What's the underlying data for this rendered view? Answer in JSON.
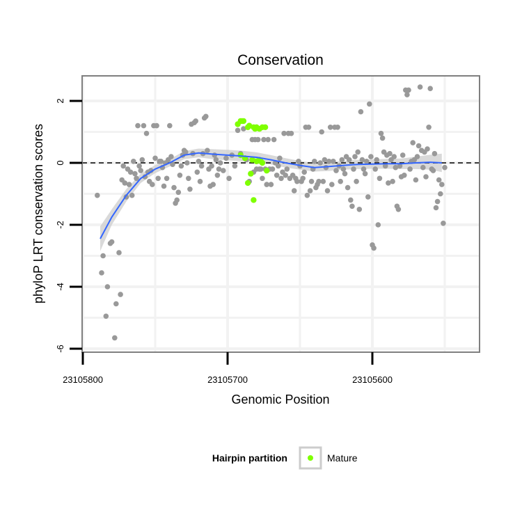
{
  "chart_data": {
    "type": "scatter",
    "title": "Conservation",
    "xlabel": "Genomic Position",
    "ylabel": "phyloP LRT conservation scores",
    "x_reversed": true,
    "xlim": [
      23105800,
      23105525
    ],
    "ylim": [
      -6,
      3
    ],
    "x_ticks": [
      23105800,
      23105700,
      23105600
    ],
    "y_ticks": [
      -6,
      -4,
      -2,
      0,
      2
    ],
    "reference_line": {
      "y": 0,
      "style": "dashed"
    },
    "grid": true,
    "legend": {
      "title": "Hairpin partition",
      "placement": "bottom",
      "entries": [
        "Mature"
      ]
    },
    "colors": {
      "points": "#999999",
      "mature": "#7fff00",
      "smooth": "#3366ff",
      "ribbon": "#cccccc",
      "panel_border": "#7f7f7f"
    },
    "series": [
      {
        "name": "",
        "kind": "points",
        "points": [
          [
            23105790,
            -1.05
          ],
          [
            23105787,
            -3.55
          ],
          [
            23105786,
            -3.0
          ],
          [
            23105784,
            -4.95
          ],
          [
            23105783,
            -4.0
          ],
          [
            23105781,
            -2.6
          ],
          [
            23105780,
            -2.55
          ],
          [
            23105778,
            -5.65
          ],
          [
            23105777,
            -4.55
          ],
          [
            23105775,
            -2.9
          ],
          [
            23105774,
            -4.25
          ],
          [
            23105773,
            -0.55
          ],
          [
            23105772,
            -0.1
          ],
          [
            23105771,
            -0.65
          ],
          [
            23105770,
            -1.1
          ],
          [
            23105769,
            -0.2
          ],
          [
            23105768,
            -0.7
          ],
          [
            23105767,
            -0.3
          ],
          [
            23105766,
            -1.05
          ],
          [
            23105765,
            0.05
          ],
          [
            23105764,
            -0.35
          ],
          [
            23105763,
            -0.5
          ],
          [
            23105762,
            1.2
          ],
          [
            23105761,
            -0.1
          ],
          [
            23105760,
            -0.25
          ],
          [
            23105759,
            0.1
          ],
          [
            23105758,
            1.2
          ],
          [
            23105757,
            -0.45
          ],
          [
            23105756,
            0.95
          ],
          [
            23105755,
            -0.3
          ],
          [
            23105754,
            -0.6
          ],
          [
            23105753,
            -0.25
          ],
          [
            23105752,
            -0.7
          ],
          [
            23105751,
            1.2
          ],
          [
            23105750,
            0.15
          ],
          [
            23105749,
            1.2
          ],
          [
            23105748,
            -0.5
          ],
          [
            23105747,
            0.05
          ],
          [
            23105746,
            0.05
          ],
          [
            23105745,
            -0.15
          ],
          [
            23105744,
            -0.75
          ],
          [
            23105743,
            0.0
          ],
          [
            23105742,
            -0.5
          ],
          [
            23105741,
            0.1
          ],
          [
            23105740,
            1.2
          ],
          [
            23105739,
            0.2
          ],
          [
            23105738,
            -0.05
          ],
          [
            23105737,
            -0.8
          ],
          [
            23105736,
            -1.3
          ],
          [
            23105735,
            -1.2
          ],
          [
            23105734,
            -0.95
          ],
          [
            23105733,
            -0.4
          ],
          [
            23105732,
            -0.1
          ],
          [
            23105731,
            0.25
          ],
          [
            23105730,
            0.4
          ],
          [
            23105729,
            0.35
          ],
          [
            23105728,
            0.0
          ],
          [
            23105727,
            -0.5
          ],
          [
            23105726,
            -0.85
          ],
          [
            23105725,
            1.25
          ],
          [
            23105724,
            0.3
          ],
          [
            23105723,
            1.3
          ],
          [
            23105722,
            1.35
          ],
          [
            23105721,
            -0.3
          ],
          [
            23105720,
            0.05
          ],
          [
            23105719,
            -0.6
          ],
          [
            23105718,
            -0.1
          ],
          [
            23105717,
            0.3
          ],
          [
            23105716,
            1.45
          ],
          [
            23105715,
            1.5
          ],
          [
            23105714,
            0.4
          ],
          [
            23105713,
            -0.2
          ],
          [
            23105712,
            -0.75
          ],
          [
            23105711,
            -0.1
          ],
          [
            23105710,
            -0.7
          ],
          [
            23105709,
            0.25
          ],
          [
            23105708,
            0.1
          ],
          [
            23105707,
            -0.4
          ],
          [
            23105706,
            -0.2
          ],
          [
            23105705,
            0.0
          ],
          [
            23105703,
            -0.25
          ],
          [
            23105701,
            0.15
          ],
          [
            23105699,
            -0.5
          ],
          [
            23105697,
            0.25
          ],
          [
            23105695,
            -0.1
          ],
          [
            23105693,
            1.05
          ],
          [
            23105691,
            0.3
          ],
          [
            23105689,
            1.1
          ],
          [
            23105687,
            0.1
          ],
          [
            23105685,
            -0.6
          ],
          [
            23105683,
            0.75
          ],
          [
            23105682,
            -0.3
          ],
          [
            23105681,
            0.75
          ],
          [
            23105680,
            -0.2
          ],
          [
            23105679,
            0.75
          ],
          [
            23105678,
            -0.2
          ],
          [
            23105677,
            -0.2
          ],
          [
            23105676,
            -0.5
          ],
          [
            23105675,
            0.75
          ],
          [
            23105674,
            -0.2
          ],
          [
            23105673,
            -0.7
          ],
          [
            23105672,
            0.75
          ],
          [
            23105671,
            -0.2
          ],
          [
            23105670,
            -0.7
          ],
          [
            23105669,
            -0.2
          ],
          [
            23105668,
            0.75
          ],
          [
            23105667,
            0.0
          ],
          [
            23105666,
            -0.4
          ],
          [
            23105665,
            -0.1
          ],
          [
            23105664,
            0.15
          ],
          [
            23105663,
            -0.5
          ],
          [
            23105662,
            -0.3
          ],
          [
            23105661,
            0.95
          ],
          [
            23105660,
            -0.4
          ],
          [
            23105659,
            -0.2
          ],
          [
            23105658,
            0.95
          ],
          [
            23105657,
            -0.5
          ],
          [
            23105656,
            0.95
          ],
          [
            23105655,
            -0.4
          ],
          [
            23105654,
            -0.9
          ],
          [
            23105653,
            -0.5
          ],
          [
            23105652,
            -0.6
          ],
          [
            23105651,
            0.05
          ],
          [
            23105650,
            -0.1
          ],
          [
            23105649,
            -0.6
          ],
          [
            23105648,
            -0.5
          ],
          [
            23105647,
            -0.3
          ],
          [
            23105646,
            1.15
          ],
          [
            23105645,
            -1.05
          ],
          [
            23105644,
            1.15
          ],
          [
            23105643,
            -0.9
          ],
          [
            23105642,
            -0.6
          ],
          [
            23105641,
            -0.2
          ],
          [
            23105640,
            0.05
          ],
          [
            23105639,
            -0.8
          ],
          [
            23105638,
            -0.7
          ],
          [
            23105637,
            -0.6
          ],
          [
            23105636,
            0.0
          ],
          [
            23105635,
            1.0
          ],
          [
            23105634,
            -0.6
          ],
          [
            23105633,
            0.1
          ],
          [
            23105632,
            -0.15
          ],
          [
            23105631,
            -0.9
          ],
          [
            23105630,
            0.05
          ],
          [
            23105629,
            1.15
          ],
          [
            23105628,
            -0.7
          ],
          [
            23105627,
            0.05
          ],
          [
            23105626,
            1.15
          ],
          [
            23105625,
            -0.25
          ],
          [
            23105624,
            1.15
          ],
          [
            23105623,
            -0.1
          ],
          [
            23105622,
            -0.6
          ],
          [
            23105621,
            0.1
          ],
          [
            23105620,
            -0.2
          ],
          [
            23105619,
            -0.35
          ],
          [
            23105618,
            0.2
          ],
          [
            23105617,
            -0.8
          ],
          [
            23105616,
            0.1
          ],
          [
            23105615,
            -1.2
          ],
          [
            23105614,
            -1.4
          ],
          [
            23105613,
            -0.2
          ],
          [
            23105612,
            0.2
          ],
          [
            23105611,
            -0.6
          ],
          [
            23105610,
            0.35
          ],
          [
            23105609,
            -1.5
          ],
          [
            23105608,
            1.65
          ],
          [
            23105607,
            0.1
          ],
          [
            23105606,
            -0.2
          ],
          [
            23105605,
            -0.35
          ],
          [
            23105604,
            0.05
          ],
          [
            23105603,
            -1.1
          ],
          [
            23105602,
            1.9
          ],
          [
            23105601,
            0.2
          ],
          [
            23105600,
            -2.65
          ],
          [
            23105599,
            -2.75
          ],
          [
            23105598,
            -0.2
          ],
          [
            23105597,
            0.1
          ],
          [
            23105596,
            -2.0
          ],
          [
            23105595,
            -0.5
          ],
          [
            23105594,
            0.95
          ],
          [
            23105593,
            0.8
          ],
          [
            23105592,
            0.35
          ],
          [
            23105591,
            -0.1
          ],
          [
            23105590,
            0.25
          ],
          [
            23105589,
            -0.65
          ],
          [
            23105588,
            0.3
          ],
          [
            23105587,
            0.1
          ],
          [
            23105586,
            -0.6
          ],
          [
            23105585,
            0.2
          ],
          [
            23105584,
            -0.15
          ],
          [
            23105583,
            -1.4
          ],
          [
            23105582,
            -1.5
          ],
          [
            23105581,
            -0.1
          ],
          [
            23105580,
            -0.45
          ],
          [
            23105579,
            0.25
          ],
          [
            23105578,
            -0.4
          ],
          [
            23105577,
            2.35
          ],
          [
            23105576,
            2.2
          ],
          [
            23105575,
            2.35
          ],
          [
            23105574,
            -0.2
          ],
          [
            23105573,
            0.05
          ],
          [
            23105572,
            0.65
          ],
          [
            23105571,
            0.1
          ],
          [
            23105570,
            -0.55
          ],
          [
            23105569,
            0.2
          ],
          [
            23105568,
            0.55
          ],
          [
            23105567,
            2.45
          ],
          [
            23105566,
            0.4
          ],
          [
            23105565,
            -0.15
          ],
          [
            23105564,
            0.35
          ],
          [
            23105563,
            -0.45
          ],
          [
            23105562,
            0.45
          ],
          [
            23105561,
            1.15
          ],
          [
            23105560,
            2.4
          ],
          [
            23105559,
            -0.2
          ],
          [
            23105558,
            -0.25
          ],
          [
            23105557,
            0.3
          ],
          [
            23105556,
            -1.45
          ],
          [
            23105555,
            -1.25
          ],
          [
            23105554,
            -0.55
          ],
          [
            23105553,
            -1.0
          ],
          [
            23105552,
            -0.7
          ],
          [
            23105551,
            -1.95
          ],
          [
            23105550,
            -0.15
          ]
        ]
      },
      {
        "name": "Mature",
        "kind": "points",
        "points": [
          [
            23105693,
            1.25
          ],
          [
            23105691,
            1.35
          ],
          [
            23105690,
            1.35
          ],
          [
            23105689,
            1.35
          ],
          [
            23105686,
            1.15
          ],
          [
            23105685,
            1.2
          ],
          [
            23105682,
            1.15
          ],
          [
            23105681,
            1.1
          ],
          [
            23105680,
            1.15
          ],
          [
            23105678,
            1.1
          ],
          [
            23105676,
            1.15
          ],
          [
            23105674,
            1.15
          ],
          [
            23105691,
            0.25
          ],
          [
            23105688,
            0.15
          ],
          [
            23105686,
            -0.65
          ],
          [
            23105684,
            -0.35
          ],
          [
            23105683,
            0.1
          ],
          [
            23105682,
            -1.2
          ],
          [
            23105680,
            0.05
          ],
          [
            23105678,
            0.1
          ],
          [
            23105677,
            0.05
          ],
          [
            23105676,
            0.0
          ],
          [
            23105673,
            -0.25
          ]
        ]
      },
      {
        "name": "",
        "kind": "smooth",
        "x": [
          23105788,
          23105780,
          23105770,
          23105760,
          23105750,
          23105740,
          23105730,
          23105720,
          23105710,
          23105700,
          23105690,
          23105680,
          23105670,
          23105660,
          23105650,
          23105640,
          23105630,
          23105620,
          23105610,
          23105600,
          23105590,
          23105580,
          23105570,
          23105560,
          23105552
        ],
        "y": [
          -2.45,
          -1.75,
          -1.05,
          -0.5,
          -0.2,
          0.0,
          0.25,
          0.32,
          0.28,
          0.25,
          0.22,
          0.18,
          0.1,
          0.0,
          -0.08,
          -0.15,
          -0.12,
          -0.08,
          -0.05,
          -0.04,
          -0.03,
          -0.03,
          0.0,
          0.02,
          0.0
        ],
        "lower": [
          -2.85,
          -2.0,
          -1.25,
          -0.65,
          -0.33,
          -0.12,
          0.12,
          0.18,
          0.12,
          0.08,
          0.05,
          0.02,
          -0.05,
          -0.15,
          -0.22,
          -0.28,
          -0.26,
          -0.22,
          -0.2,
          -0.19,
          -0.19,
          -0.2,
          -0.2,
          -0.22,
          -0.3
        ],
        "upper": [
          -2.05,
          -1.5,
          -0.85,
          -0.35,
          -0.07,
          0.12,
          0.38,
          0.46,
          0.44,
          0.42,
          0.39,
          0.34,
          0.25,
          0.15,
          0.06,
          -0.02,
          0.02,
          0.06,
          0.1,
          0.11,
          0.13,
          0.14,
          0.2,
          0.26,
          0.3
        ]
      }
    ]
  }
}
